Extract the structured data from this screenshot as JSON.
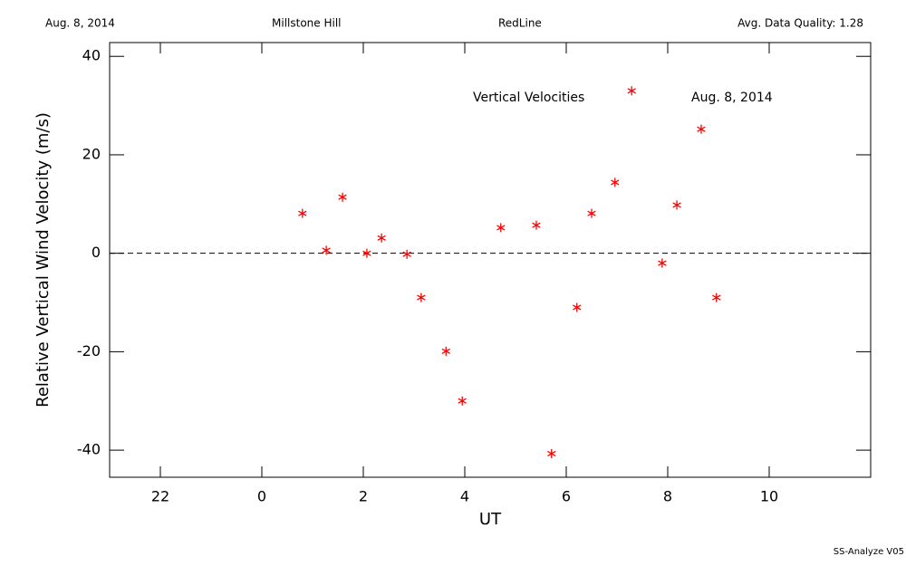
{
  "header": {
    "date": "Aug. 8, 2014",
    "site": "Millstone Hill",
    "line": "RedLine",
    "quality": "Avg. Data Quality: 1.28"
  },
  "footer": "SS-Analyze V05",
  "chart_data": {
    "type": "scatter",
    "annotations": [
      "Vertical Velocities",
      "Aug. 8, 2014"
    ],
    "xlabel": "UT",
    "ylabel": "Relative Vertical Wind Velocity (m/s)",
    "xlim": [
      -3,
      12
    ],
    "ylim": [
      -45.5,
      42.8
    ],
    "xticks": [
      {
        "value": -2,
        "label": "22"
      },
      0,
      2,
      4,
      6,
      8,
      10
    ],
    "yticks": [
      -40,
      -20,
      0,
      20,
      40
    ],
    "reference_line": 0,
    "color": "#ff0000",
    "x": [
      0.8,
      1.27,
      1.59,
      2.07,
      2.36,
      2.86,
      3.14,
      3.63,
      3.95,
      4.71,
      5.41,
      5.71,
      6.21,
      6.5,
      6.96,
      7.29,
      7.89,
      8.18,
      8.66,
      8.96
    ],
    "values": [
      8.1,
      0.6,
      11.4,
      0,
      3.1,
      -0.2,
      -9.0,
      -19.9,
      -30.0,
      5.2,
      5.7,
      -40.7,
      -11.0,
      8.1,
      14.4,
      33.0,
      -2.0,
      9.8,
      25.2,
      -9.0
    ]
  }
}
